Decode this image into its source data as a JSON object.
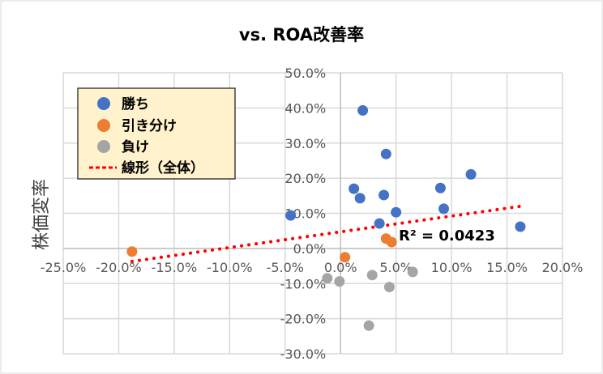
{
  "chart_data": {
    "type": "scatter",
    "title": "vs. ROA改善率",
    "xlabel": "",
    "ylabel": "株価変率",
    "xlim": [
      -0.25,
      0.2
    ],
    "ylim": [
      -0.3,
      0.5
    ],
    "xticks": [
      "-25.0%",
      "-20.0%",
      "-15.0%",
      "-10.0%",
      "-5.0%",
      "0.0%",
      "5.0%",
      "10.0%",
      "15.0%",
      "20.0%"
    ],
    "yticks": [
      "50.0%",
      "40.0%",
      "30.0%",
      "20.0%",
      "10.0%",
      "0.0%",
      "-10.0%",
      "-20.0%",
      "-30.0%"
    ],
    "grid": true,
    "legend_position": "top-left",
    "series": [
      {
        "name": "勝ち",
        "color": "#4472C4",
        "points": [
          [
            -0.045,
            0.094
          ],
          [
            0.02,
            0.393
          ],
          [
            0.041,
            0.269
          ],
          [
            0.012,
            0.17
          ],
          [
            0.0175,
            0.143
          ],
          [
            0.039,
            0.152
          ],
          [
            0.035,
            0.071
          ],
          [
            0.05,
            0.103
          ],
          [
            0.09,
            0.172
          ],
          [
            0.093,
            0.113
          ],
          [
            0.1175,
            0.211
          ],
          [
            0.162,
            0.062
          ]
        ]
      },
      {
        "name": "引き分け",
        "color": "#ED7D31",
        "points": [
          [
            -0.188,
            -0.009
          ],
          [
            0.004,
            -0.025
          ],
          [
            0.041,
            0.028
          ],
          [
            0.046,
            0.018
          ]
        ]
      },
      {
        "name": "負け",
        "color": "#A5A5A5",
        "points": [
          [
            -0.012,
            -0.085
          ],
          [
            -0.001,
            -0.094
          ],
          [
            0.0285,
            -0.076
          ],
          [
            0.044,
            -0.11
          ],
          [
            0.065,
            -0.067
          ],
          [
            0.0255,
            -0.22
          ]
        ]
      }
    ],
    "trendline": {
      "name": "線形（全体）",
      "color": "#FF0000",
      "x": [
        -0.188,
        0.162
      ],
      "y": [
        -0.037,
        0.12
      ]
    },
    "annotation": "R² = 0.0423"
  }
}
